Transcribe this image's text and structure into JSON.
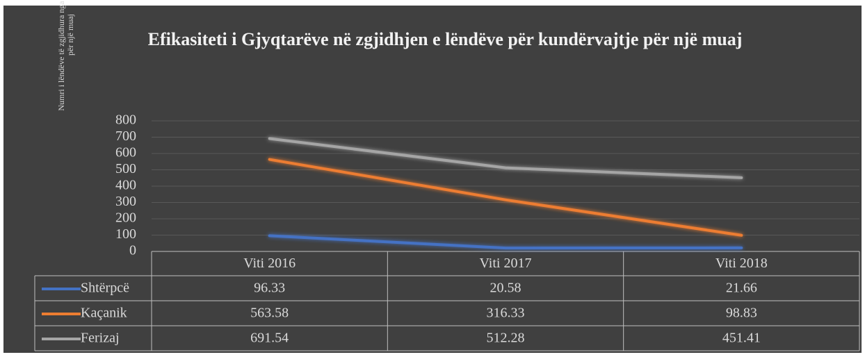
{
  "chart_data": {
    "type": "line",
    "title": "Efikasiteti i Gjyqtarëve në zgjidhjen e lëndëve për kundërvajtje për një muaj",
    "y_label": "Numri i lëndëve të zgjidhura nga një gjyqtar / për një muaj",
    "categories": [
      "Viti 2016",
      "Viti 2017",
      "Viti 2018"
    ],
    "series": [
      {
        "name": "Shtërpcë",
        "color": "#4472c4",
        "values": [
          96.33,
          20.58,
          21.66
        ]
      },
      {
        "name": "Kaçanik",
        "color": "#ed7d31",
        "values": [
          563.58,
          316.33,
          98.83
        ]
      },
      {
        "name": "Ferizaj",
        "color": "#a5a5a5",
        "values": [
          691.54,
          512.28,
          451.41
        ]
      }
    ],
    "ylim": [
      0,
      800
    ],
    "yticks": [
      0,
      100,
      200,
      300,
      400,
      500,
      600,
      700,
      800
    ],
    "grid": true,
    "data_table": true
  }
}
